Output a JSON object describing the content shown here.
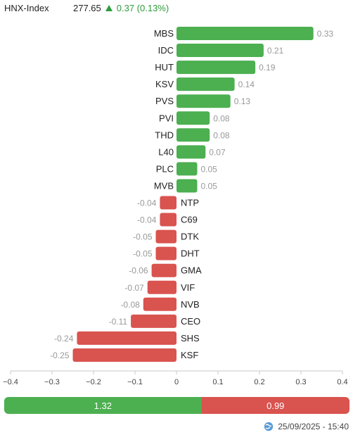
{
  "index": {
    "name": "HNX-Index",
    "value": "277.65",
    "change": "0.37 (0.13%)"
  },
  "colors": {
    "positive": "#4caf50",
    "negative": "#d9534f",
    "label_gray": "#999999"
  },
  "chart_data": {
    "type": "bar",
    "orientation": "horizontal",
    "categories": [
      "MBS",
      "IDC",
      "HUT",
      "KSV",
      "PVS",
      "PVI",
      "THD",
      "L40",
      "PLC",
      "MVB",
      "NTP",
      "C69",
      "DTK",
      "DHT",
      "GMA",
      "VIF",
      "NVB",
      "CEO",
      "SHS",
      "KSF"
    ],
    "values": [
      0.33,
      0.21,
      0.19,
      0.14,
      0.13,
      0.08,
      0.08,
      0.07,
      0.05,
      0.05,
      -0.04,
      -0.04,
      -0.05,
      -0.05,
      -0.06,
      -0.07,
      -0.08,
      -0.11,
      -0.24,
      -0.25
    ],
    "value_labels": [
      "0.33",
      "0.21",
      "0.19",
      "0.14",
      "0.13",
      "0.08",
      "0.08",
      "0.07",
      "0.05",
      "0.05",
      "-0.04",
      "-0.04",
      "-0.05",
      "-0.05",
      "-0.06",
      "-0.07",
      "-0.08",
      "-0.11",
      "-0.24",
      "-0.25"
    ],
    "xlim": [
      -0.4,
      0.4
    ],
    "xticks": [
      -0.4,
      -0.3,
      -0.2,
      -0.1,
      0,
      0.1,
      0.2,
      0.3,
      0.4
    ],
    "xtick_labels": [
      "−0.4",
      "−0.3",
      "−0.2",
      "−0.1",
      "0",
      "0.1",
      "0.2",
      "0.3",
      "0.4"
    ],
    "grid": false
  },
  "summary": {
    "positive": "1.32",
    "negative": "0.99"
  },
  "footer": {
    "timestamp": "25/09/2025 - 15:40",
    "icon": "refresh-globe-icon"
  }
}
